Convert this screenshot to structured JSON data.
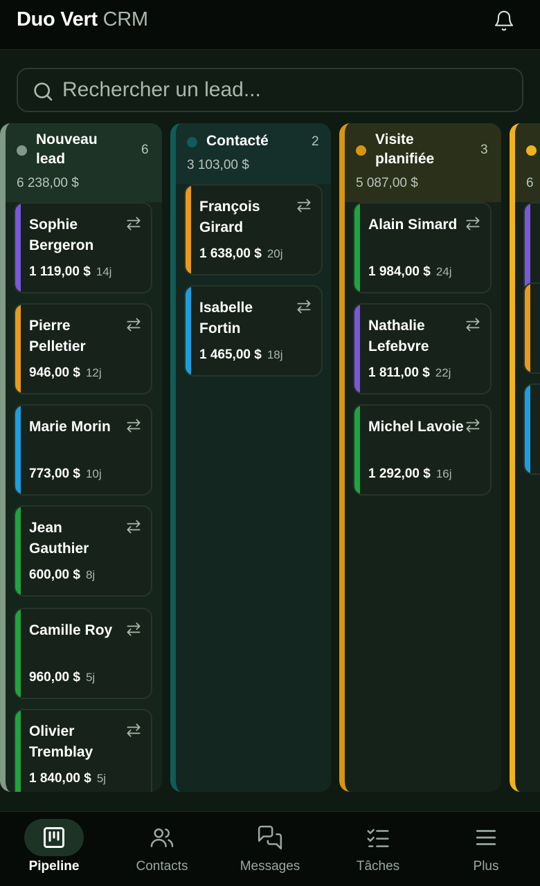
{
  "header": {
    "brand_bold": "Duo Vert",
    "brand_light": "CRM",
    "notifications_icon": "bell-icon"
  },
  "search": {
    "placeholder": "Rechercher un lead...",
    "value": ""
  },
  "colors": {
    "nouveau": "#7f9a86",
    "contacte": "#0f5c5a",
    "visite": "#d7960f",
    "offre": "#f0b31c",
    "purple": "#7b57d9",
    "orange": "#e99a1d",
    "blue": "#1d9ee0",
    "green": "#1ea53e"
  },
  "columns": [
    {
      "title": "Nouveau lead",
      "count": "6",
      "total": "6 238,00 $",
      "cards": [
        {
          "name": "Sophie Bergeron",
          "amount": "1 119,00 $",
          "age": "14j",
          "stripe": "purple"
        },
        {
          "name": "Pierre Pelletier",
          "amount": "946,00 $",
          "age": "12j",
          "stripe": "orange"
        },
        {
          "name": "Marie Morin",
          "amount": "773,00 $",
          "age": "10j",
          "stripe": "blue"
        },
        {
          "name": "Jean Gauthier",
          "amount": "600,00 $",
          "age": "8j",
          "stripe": "green"
        },
        {
          "name": "Camille Roy",
          "amount": "960,00 $",
          "age": "5j",
          "stripe": "green"
        },
        {
          "name": "Olivier Tremblay",
          "amount": "1 840,00 $",
          "age": "5j",
          "stripe": "green"
        }
      ]
    },
    {
      "title": "Contacté",
      "count": "2",
      "total": "3 103,00 $",
      "cards": [
        {
          "name": "François Girard",
          "amount": "1 638,00 $",
          "age": "20j",
          "stripe": "orange"
        },
        {
          "name": "Isabelle Fortin",
          "amount": "1 465,00 $",
          "age": "18j",
          "stripe": "blue"
        }
      ]
    },
    {
      "title": "Visite planifiée",
      "count": "3",
      "total": "5 087,00 $",
      "cards": [
        {
          "name": "Alain Simard",
          "amount": "1 984,00 $",
          "age": "24j",
          "stripe": "green"
        },
        {
          "name": "Nathalie Lefebvre",
          "amount": "1 811,00 $",
          "age": "22j",
          "stripe": "purple"
        },
        {
          "name": "Michel Lavoie",
          "amount": "1 292,00 $",
          "age": "16j",
          "stripe": "green"
        }
      ]
    },
    {
      "title": "",
      "count": "",
      "total": "6",
      "cards": [
        {
          "name": "",
          "amount": "",
          "age": "",
          "stripe": "purple"
        },
        {
          "name": "",
          "amount": "",
          "age": "",
          "stripe": "orange"
        },
        {
          "name": "",
          "amount": "",
          "age": "",
          "stripe": "blue"
        }
      ]
    }
  ],
  "nav": [
    {
      "label": "Pipeline",
      "icon": "kanban-icon",
      "active": true
    },
    {
      "label": "Contacts",
      "icon": "users-icon",
      "active": false
    },
    {
      "label": "Messages",
      "icon": "messages-icon",
      "active": false
    },
    {
      "label": "Tâches",
      "icon": "tasks-icon",
      "active": false
    },
    {
      "label": "Plus",
      "icon": "menu-icon",
      "active": false
    }
  ]
}
